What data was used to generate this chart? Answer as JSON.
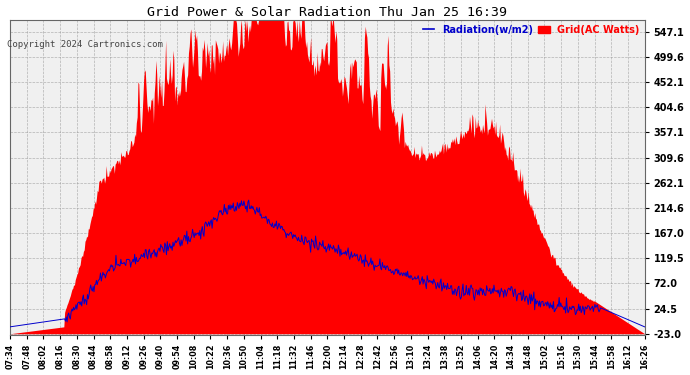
{
  "title": "Grid Power & Solar Radiation Thu Jan 25 16:39",
  "copyright": "Copyright 2024 Cartronics.com",
  "legend_radiation": "Radiation(w/m2)",
  "legend_grid": "Grid(AC Watts)",
  "yticks": [
    547.1,
    499.6,
    452.1,
    404.6,
    357.1,
    309.6,
    262.1,
    214.6,
    167.0,
    119.5,
    72.0,
    24.5,
    -23.0
  ],
  "ymin": -23.0,
  "ymax": 570.0,
  "background_color": "#ffffff",
  "plot_bg_color": "#f0f0f0",
  "grid_color": "#999999",
  "red_color": "#ff0000",
  "blue_color": "#0000cc",
  "title_color": "#000000",
  "copyright_color": "#444444",
  "x_labels": [
    "07:34",
    "07:48",
    "08:02",
    "08:16",
    "08:30",
    "08:44",
    "08:58",
    "09:12",
    "09:26",
    "09:40",
    "09:54",
    "10:08",
    "10:22",
    "10:36",
    "10:50",
    "11:04",
    "11:18",
    "11:32",
    "11:46",
    "12:00",
    "12:14",
    "12:28",
    "12:42",
    "12:56",
    "13:10",
    "13:24",
    "13:38",
    "13:52",
    "14:06",
    "14:20",
    "14:34",
    "14:48",
    "15:02",
    "15:16",
    "15:30",
    "15:44",
    "15:58",
    "16:12",
    "16:26"
  ]
}
